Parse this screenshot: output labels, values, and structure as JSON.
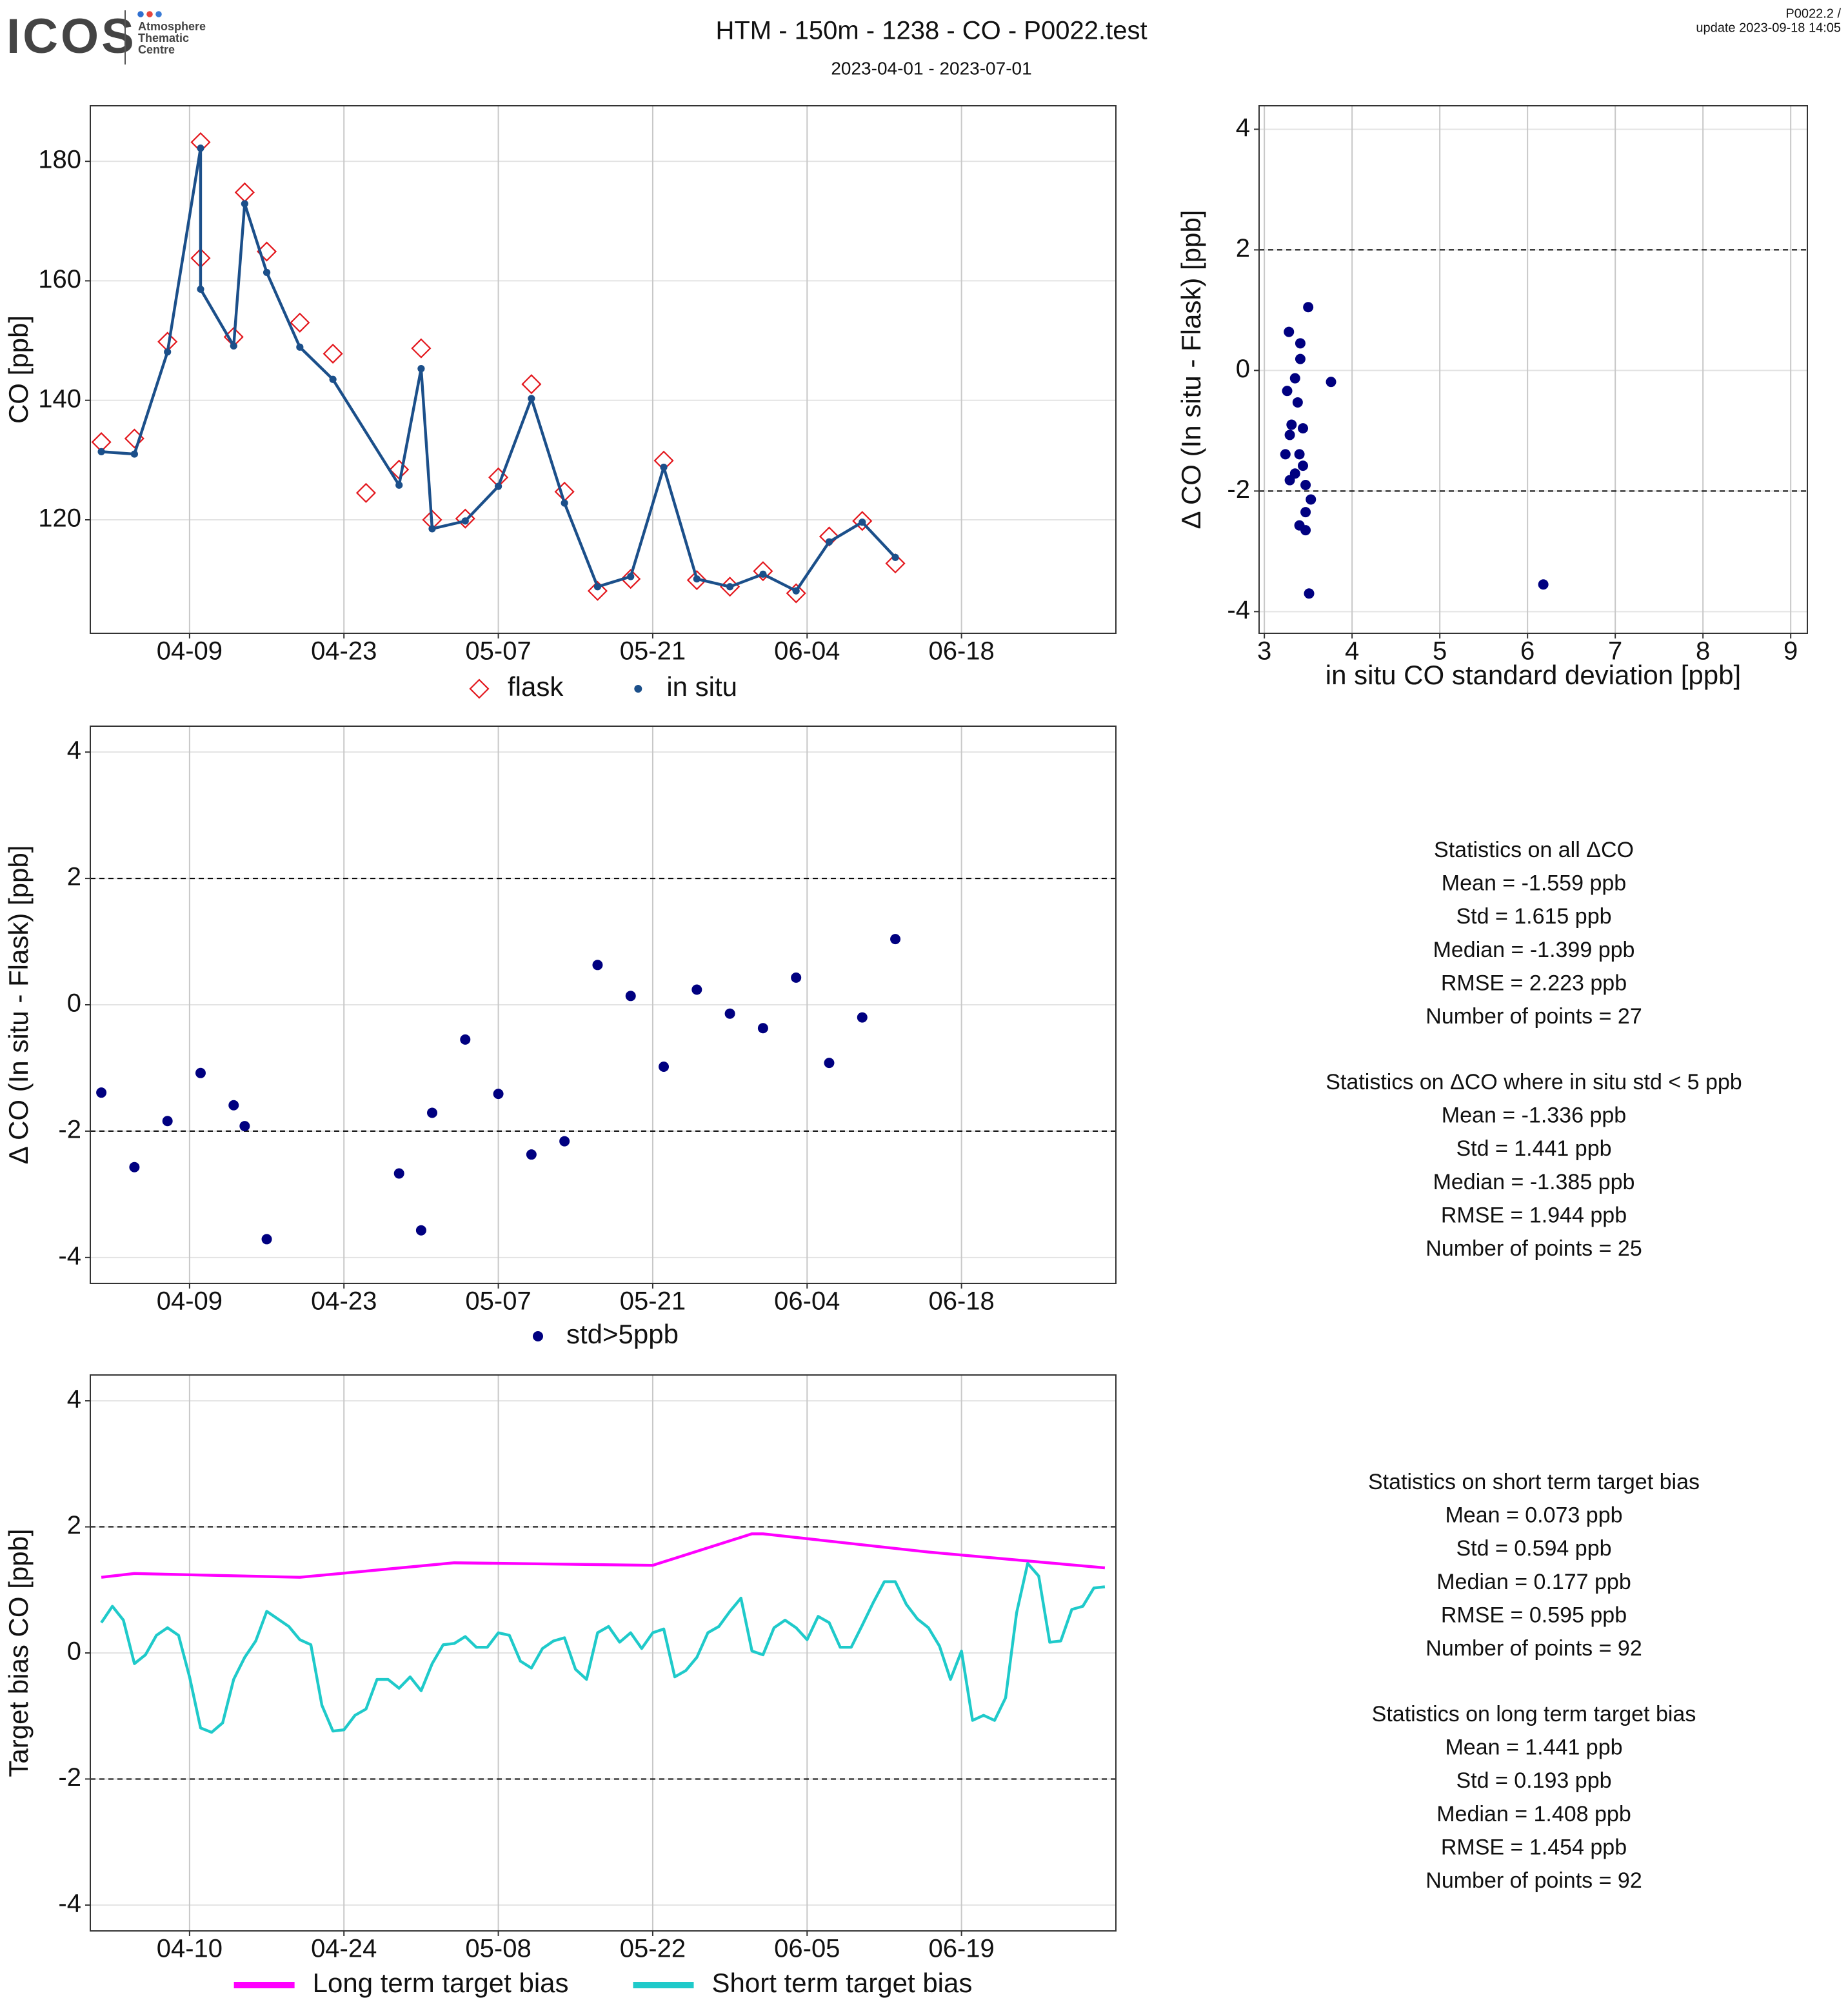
{
  "header": {
    "logo": "ICOS",
    "logo_sub": [
      "Atmosphere",
      "Thematic",
      "Centre"
    ],
    "version": "P0022.2 /",
    "update": "update  2023-09-18 14:05",
    "title": "HTM - 150m - 1238 - CO - P0022.test",
    "subtitle": "2023-04-01 - 2023-07-01"
  },
  "statistics": [
    [
      "Statistics on all ΔCO",
      "Mean =  -1.559 ppb",
      "Std =  1.615 ppb",
      "Median =  -1.399 ppb",
      "RMSE =  2.223 ppb",
      "Number of points =  27"
    ],
    [
      "Statistics on ΔCO where in situ std < 5 ppb",
      "Mean =  -1.336 ppb",
      "Std =  1.441 ppb",
      "Median =  -1.385 ppb",
      "RMSE =  1.944 ppb",
      "Number of points =  25"
    ],
    [
      "Statistics on short term target bias",
      "Mean =  0.073 ppb",
      "Std =  0.594 ppb",
      "Median =  0.177 ppb",
      "RMSE =  0.595 ppb",
      "Number of points =  92"
    ],
    [
      "Statistics on long term target bias",
      "Mean =  1.441 ppb",
      "Std =  0.193 ppb",
      "Median =  1.408 ppb",
      "RMSE =  1.454 ppb",
      "Number of points =  92"
    ]
  ],
  "chart_data": [
    {
      "type": "line",
      "y_label": "CO [ppb]",
      "grid": true,
      "legend": "bottom",
      "xlim": [
        "03-31",
        "07-02"
      ],
      "xticks": [
        "04-09",
        "04-23",
        "05-07",
        "05-21",
        "06-04",
        "06-18"
      ],
      "ylim": [
        101,
        189.3
      ],
      "yticks": [
        120,
        140,
        160,
        180
      ],
      "series": [
        {
          "name": "flask",
          "color": "#e3161c",
          "marker": "diamond",
          "line": false,
          "x": [
            "04-01",
            "04-04",
            "04-07",
            "04-10",
            "04-10",
            "04-13",
            "04-14",
            "04-16",
            "04-19",
            "04-22",
            "04-25",
            "04-28",
            "04-30",
            "05-01",
            "05-04",
            "05-07",
            "05-10",
            "05-13",
            "05-16",
            "05-19",
            "05-22",
            "05-25",
            "05-28",
            "05-31",
            "06-03",
            "06-06",
            "06-09",
            "06-12"
          ],
          "values": [
            133.0,
            133.6,
            149.8,
            183.2,
            163.8,
            150.6,
            174.8,
            164.9,
            153.0,
            147.8,
            124.5,
            128.4,
            148.7,
            120.0,
            120.2,
            127.1,
            142.7,
            124.7,
            108.1,
            110.1,
            129.9,
            109.9,
            108.8,
            111.4,
            107.7,
            117.2,
            119.8,
            112.7
          ]
        },
        {
          "name": "in situ",
          "color": "#1b4f8a",
          "marker": "circle",
          "line": true,
          "x": [
            "04-01",
            "04-04",
            "04-07",
            "04-10",
            "04-10",
            "04-13",
            "04-14",
            "04-16",
            "04-19",
            "04-22",
            "04-28",
            "04-30",
            "05-01",
            "05-04",
            "05-07",
            "05-10",
            "05-13",
            "05-16",
            "05-19",
            "05-22",
            "05-25",
            "05-28",
            "05-31",
            "06-03",
            "06-06",
            "06-09",
            "06-12"
          ],
          "values": [
            131.4,
            131.0,
            148.1,
            182.2,
            158.6,
            149.1,
            172.9,
            161.4,
            148.9,
            143.5,
            125.8,
            145.3,
            118.5,
            119.8,
            125.6,
            140.3,
            122.8,
            108.8,
            110.5,
            128.8,
            110.1,
            108.8,
            110.9,
            108.1,
            116.3,
            119.6,
            113.7
          ]
        }
      ]
    },
    {
      "type": "scatter",
      "x_label": "in situ CO standard deviation [ppb]",
      "y_label": "Δ CO (In situ - Flask) [ppb]",
      "grid": true,
      "xlim": [
        2.94,
        9.19
      ],
      "xticks": [
        3,
        4,
        5,
        6,
        7,
        8,
        9
      ],
      "ylim": [
        -4.36,
        4.39
      ],
      "yticks": [
        -4,
        -2,
        0,
        2,
        4
      ],
      "hlines": [
        2,
        -2
      ],
      "series": [
        {
          "color": "#000080",
          "marker": "circle",
          "line": false,
          "x": [
            3.28,
            3.41,
            3.41,
            3.5,
            3.35,
            3.76,
            3.26,
            3.38,
            3.31,
            3.44,
            3.29,
            3.24,
            3.4,
            3.44,
            3.35,
            3.29,
            3.47,
            3.53,
            3.47,
            3.4,
            3.47,
            3.51,
            6.18
          ],
          "values": [
            0.64,
            0.45,
            0.19,
            1.05,
            -0.13,
            -0.19,
            -0.34,
            -0.53,
            -0.9,
            -0.96,
            -1.07,
            -1.39,
            -1.39,
            -1.58,
            -1.71,
            -1.82,
            -1.9,
            -2.14,
            -2.35,
            -2.57,
            -2.65,
            -3.7,
            -3.55
          ]
        }
      ]
    },
    {
      "type": "scatter",
      "y_label": "Δ CO (In situ - Flask) [ppb]",
      "grid": true,
      "legend": "bottom",
      "xlim": [
        "03-31",
        "07-02"
      ],
      "xticks": [
        "04-09",
        "04-23",
        "05-07",
        "05-21",
        "06-04",
        "06-18"
      ],
      "ylim": [
        -4.41,
        4.41
      ],
      "yticks": [
        -4,
        -2,
        0,
        2,
        4
      ],
      "hlines": [
        2,
        -2
      ],
      "series": [
        {
          "name": "std>5ppb",
          "color": "#000080",
          "marker": "circle",
          "line": false,
          "x": [
            "04-01",
            "04-04",
            "04-07",
            "04-10",
            "04-13",
            "04-14",
            "04-16",
            "04-28",
            "04-30",
            "05-01",
            "05-04",
            "05-07",
            "05-10",
            "05-13",
            "05-16",
            "05-19",
            "05-22",
            "05-25",
            "05-28",
            "05-31",
            "06-03",
            "06-06",
            "06-09",
            "06-12"
          ],
          "values": [
            -1.39,
            -2.57,
            -1.84,
            -1.08,
            -1.59,
            -1.92,
            -3.71,
            -2.67,
            -3.57,
            -1.71,
            -0.55,
            -1.41,
            -2.37,
            -2.16,
            0.63,
            0.14,
            -0.98,
            0.24,
            -0.14,
            -0.37,
            0.43,
            -0.92,
            -0.2,
            1.04
          ]
        }
      ]
    },
    {
      "type": "line",
      "y_label": "Target bias CO [ppb]",
      "grid": true,
      "legend": "bottom",
      "xlim": [
        "04-01",
        "07-03"
      ],
      "xticks": [
        "04-10",
        "04-24",
        "05-08",
        "05-22",
        "06-05",
        "06-19"
      ],
      "ylim": [
        -4.41,
        4.41
      ],
      "yticks": [
        -4,
        -2,
        0,
        2,
        4
      ],
      "hlines": [
        2,
        -2
      ],
      "series": [
        {
          "name": "Long term target bias",
          "color": "#ff00ff",
          "marker": null,
          "line": true,
          "x": [
            "04-02",
            "04-05",
            "04-20",
            "05-04",
            "05-22",
            "05-31",
            "06-01",
            "06-16",
            "07-02"
          ],
          "values": [
            1.2,
            1.26,
            1.2,
            1.43,
            1.39,
            1.89,
            1.89,
            1.6,
            1.35
          ]
        },
        {
          "name": "Short term target bias",
          "color": "#1fcaca",
          "marker": null,
          "line": true,
          "x": [
            "04-02",
            "04-03",
            "04-04",
            "04-05",
            "04-06",
            "04-07",
            "04-08",
            "04-09",
            "04-10",
            "04-11",
            "04-12",
            "04-13",
            "04-14",
            "04-15",
            "04-16",
            "04-17",
            "04-18",
            "04-19",
            "04-20",
            "04-21",
            "04-22",
            "04-23",
            "04-24",
            "04-25",
            "04-26",
            "04-27",
            "04-28",
            "04-29",
            "04-30",
            "05-01",
            "05-02",
            "05-03",
            "05-04",
            "05-05",
            "05-06",
            "05-07",
            "05-08",
            "05-09",
            "05-10",
            "05-11",
            "05-12",
            "05-13",
            "05-14",
            "05-15",
            "05-16",
            "05-17",
            "05-18",
            "05-19",
            "05-20",
            "05-21",
            "05-22",
            "05-23",
            "05-24",
            "05-25",
            "05-26",
            "05-27",
            "05-28",
            "05-29",
            "05-30",
            "05-31",
            "06-01",
            "06-02",
            "06-03",
            "06-04",
            "06-05",
            "06-06",
            "06-07",
            "06-08",
            "06-09",
            "06-10",
            "06-11",
            "06-12",
            "06-13",
            "06-14",
            "06-15",
            "06-16",
            "06-17",
            "06-18",
            "06-19",
            "06-20",
            "06-21",
            "06-22",
            "06-23",
            "06-24",
            "06-25",
            "06-26",
            "06-27",
            "06-28",
            "06-29",
            "06-30",
            "07-01",
            "07-02"
          ],
          "values": [
            0.48,
            0.74,
            0.52,
            -0.17,
            -0.03,
            0.28,
            0.4,
            0.28,
            -0.38,
            -1.19,
            -1.26,
            -1.11,
            -0.42,
            -0.07,
            0.19,
            0.66,
            0.54,
            0.42,
            0.21,
            0.13,
            -0.83,
            -1.24,
            -1.22,
            -0.99,
            -0.89,
            -0.42,
            -0.42,
            -0.56,
            -0.38,
            -0.6,
            -0.17,
            0.13,
            0.15,
            0.26,
            0.09,
            0.09,
            0.32,
            0.28,
            -0.13,
            -0.24,
            0.07,
            0.19,
            0.24,
            -0.26,
            -0.42,
            0.32,
            0.42,
            0.17,
            0.32,
            0.07,
            0.32,
            0.38,
            -0.38,
            -0.28,
            -0.07,
            0.32,
            0.42,
            0.66,
            0.87,
            0.03,
            -0.03,
            0.4,
            0.52,
            0.4,
            0.21,
            0.58,
            0.48,
            0.09,
            0.09,
            0.44,
            0.8,
            1.13,
            1.13,
            0.77,
            0.54,
            0.4,
            0.11,
            -0.42,
            0.03,
            -1.07,
            -0.99,
            -1.07,
            -0.71,
            0.64,
            1.42,
            1.22,
            0.17,
            0.19,
            0.69,
            0.74,
            1.03,
            1.05
          ]
        }
      ]
    }
  ]
}
